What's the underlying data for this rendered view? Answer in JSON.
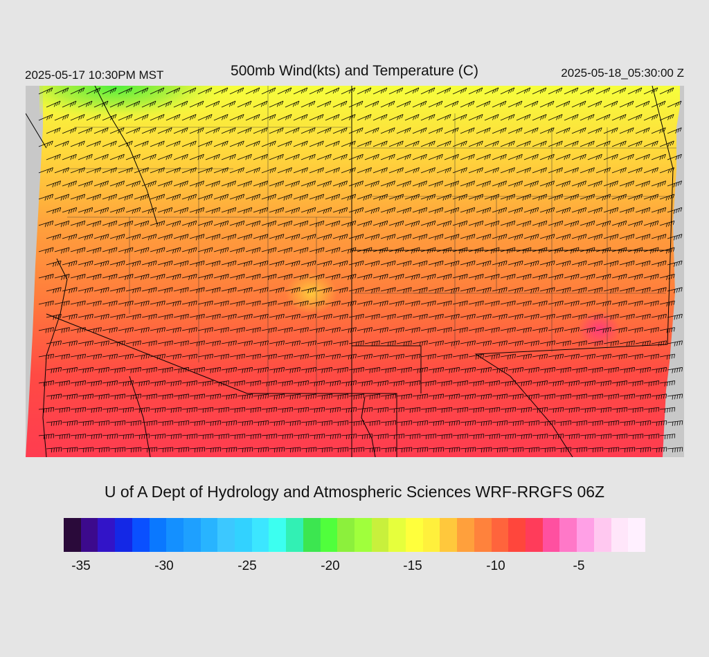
{
  "header": {
    "local_time": "2025-05-17 10:30PM MST",
    "title": "500mb Wind(kts) and Temperature (C)",
    "valid_time": "2025-05-18_05:30:00 Z"
  },
  "credit": "U of A Dept of Hydrology and Atmospheric Sciences WRF-RRGFS 06Z",
  "colorbar": {
    "colors": [
      "#2a0a3a",
      "#3c0a8c",
      "#3214c8",
      "#1428e6",
      "#0a50ff",
      "#0a78ff",
      "#1490ff",
      "#1ea0ff",
      "#28b4ff",
      "#3cc8ff",
      "#32d2ff",
      "#3ce6ff",
      "#3cfff0",
      "#32f0b4",
      "#3ce650",
      "#50ff3c",
      "#8cf03c",
      "#a0ff3c",
      "#c8f03c",
      "#e6ff3c",
      "#ffff3c",
      "#fff03c",
      "#ffc83c",
      "#ffa03c",
      "#ff823c",
      "#ff643c",
      "#ff463c",
      "#ff3c5a",
      "#ff50a0",
      "#ff78c8",
      "#ffa0e6",
      "#ffc8f0",
      "#ffe6fa",
      "#fff0ff"
    ],
    "labels": [
      "-35",
      "-30",
      "-25",
      "-20",
      "-15",
      "-10",
      "-5"
    ]
  },
  "map": {
    "region": "Southwest US / Four Corners",
    "field": "500mb temperature with wind barbs"
  }
}
